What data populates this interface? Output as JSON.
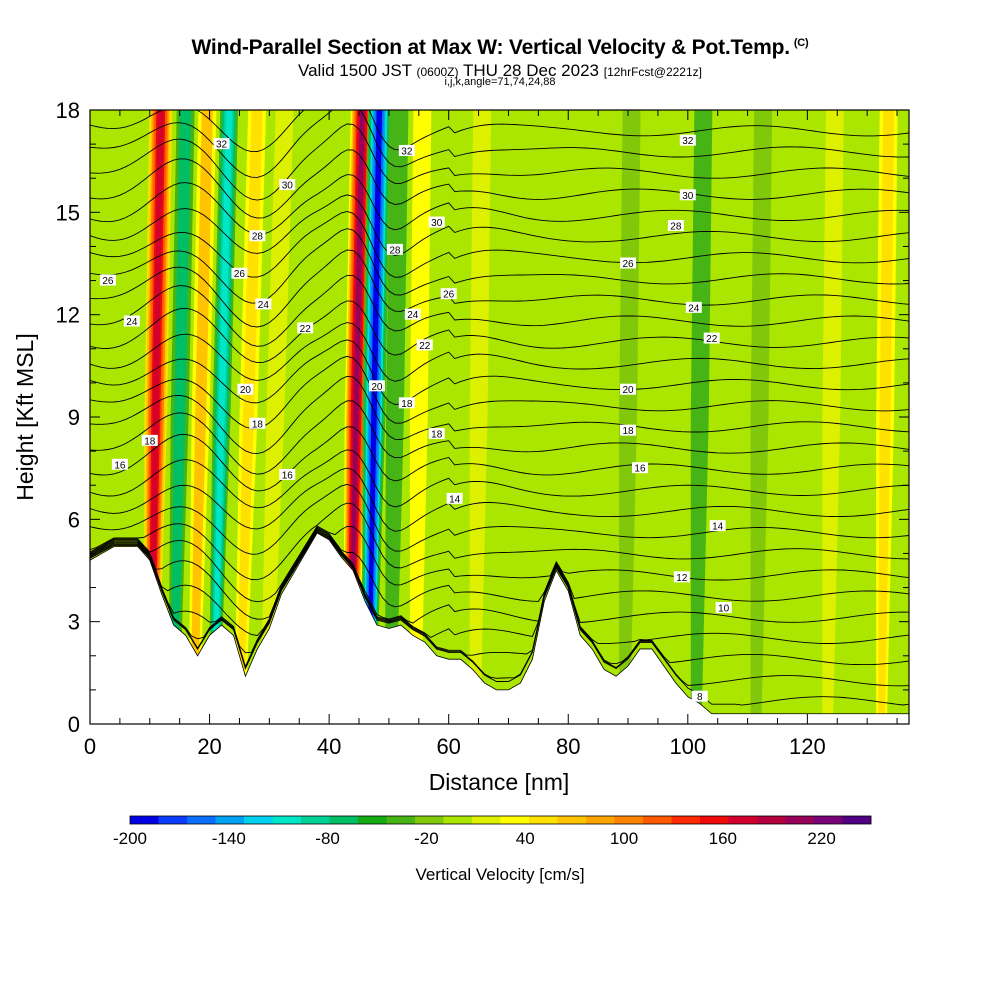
{
  "title": {
    "main": "Wind-Parallel Section at Max W: Vertical Velocity & Pot.Temp.",
    "copyright": "(C)",
    "valid_prefix": "Valid 1500 JST",
    "valid_utc": "(0600Z)",
    "valid_date": "THU 28 Dec 2023",
    "forecast": "[12hrFcst@2221z]",
    "indices": "i,j,k,angle=71,74,24,88"
  },
  "chart_data": {
    "type": "heatmap",
    "xlabel": "Distance [nm]",
    "ylabel": "Height [Kft MSL]",
    "xlim": [
      0,
      137
    ],
    "ylim": [
      0,
      18
    ],
    "x_ticks": [
      0,
      20,
      40,
      60,
      80,
      100,
      120
    ],
    "y_ticks": [
      0,
      3,
      6,
      9,
      12,
      15,
      18
    ],
    "colorbar": {
      "label": "Vertical Velocity [cm/s]",
      "min": -200,
      "max": 250,
      "tick_values": [
        -200,
        -140,
        -80,
        -20,
        40,
        100,
        160,
        220
      ],
      "colors": [
        "#0000e6",
        "#0a3cff",
        "#0a6eff",
        "#00a0f5",
        "#00d2f0",
        "#00e6c8",
        "#00d296",
        "#00be64",
        "#14aa14",
        "#46b414",
        "#82c80a",
        "#aae600",
        "#dcf000",
        "#ffff00",
        "#ffe100",
        "#ffc300",
        "#ffa500",
        "#ff8200",
        "#ff5a00",
        "#ff2800",
        "#f00a0a",
        "#d2002d",
        "#b4003c",
        "#96005a",
        "#780078",
        "#500082"
      ]
    },
    "terrain": [
      [
        0,
        4.8
      ],
      [
        2,
        5.0
      ],
      [
        4,
        5.2
      ],
      [
        6,
        5.2
      ],
      [
        8,
        5.2
      ],
      [
        10,
        4.8
      ],
      [
        12,
        3.8
      ],
      [
        14,
        2.9
      ],
      [
        16,
        2.6
      ],
      [
        18,
        2.0
      ],
      [
        20,
        2.6
      ],
      [
        22,
        2.9
      ],
      [
        24,
        2.6
      ],
      [
        26,
        1.4
      ],
      [
        28,
        2.2
      ],
      [
        30,
        2.8
      ],
      [
        32,
        3.8
      ],
      [
        34,
        4.4
      ],
      [
        36,
        5.0
      ],
      [
        38,
        5.6
      ],
      [
        40,
        5.4
      ],
      [
        42,
        4.9
      ],
      [
        44,
        4.5
      ],
      [
        46,
        3.6
      ],
      [
        48,
        2.9
      ],
      [
        50,
        2.8
      ],
      [
        52,
        2.9
      ],
      [
        54,
        2.6
      ],
      [
        56,
        2.4
      ],
      [
        58,
        2.0
      ],
      [
        60,
        1.9
      ],
      [
        62,
        1.9
      ],
      [
        64,
        1.6
      ],
      [
        66,
        1.2
      ],
      [
        68,
        1.0
      ],
      [
        70,
        1.0
      ],
      [
        72,
        1.2
      ],
      [
        74,
        1.9
      ],
      [
        76,
        3.6
      ],
      [
        78,
        4.5
      ],
      [
        80,
        3.9
      ],
      [
        82,
        2.6
      ],
      [
        84,
        2.2
      ],
      [
        86,
        1.6
      ],
      [
        88,
        1.4
      ],
      [
        90,
        1.7
      ],
      [
        92,
        2.2
      ],
      [
        94,
        2.2
      ],
      [
        96,
        1.7
      ],
      [
        98,
        1.2
      ],
      [
        100,
        0.8
      ],
      [
        102,
        0.6
      ],
      [
        104,
        0.3
      ],
      [
        106,
        0.3
      ],
      [
        137,
        0.3
      ]
    ],
    "w_features": [
      {
        "x": 11,
        "w": 180
      },
      {
        "x": 15,
        "w": -70
      },
      {
        "x": 18.5,
        "w": 60
      },
      {
        "x": 22,
        "w": -110
      },
      {
        "x": 26.5,
        "w": 50
      },
      {
        "x": 31,
        "w": 20
      },
      {
        "x": 44.5,
        "w": 200
      },
      {
        "x": 47.5,
        "w": -190
      },
      {
        "x": 51,
        "w": -40
      },
      {
        "x": 55,
        "w": 40
      },
      {
        "x": 65,
        "w": 10
      },
      {
        "x": 90,
        "w": -25
      },
      {
        "x": 102,
        "w": -30
      },
      {
        "x": 112,
        "w": -20
      },
      {
        "x": 124,
        "w": 20
      },
      {
        "x": 133,
        "w": 50
      }
    ],
    "isentropes": [
      {
        "theta": 8,
        "y": 0.8,
        "label_x": 102
      },
      {
        "theta": 10,
        "y": 3.4,
        "label_x": 106
      },
      {
        "theta": 12,
        "y": 4.3,
        "label_x": 99
      },
      {
        "theta": 14,
        "y": 5.8,
        "label_x": 105
      },
      {
        "theta": 14,
        "y": 6.6,
        "label_x": 61
      },
      {
        "theta": 16,
        "y": 7.3,
        "label_x": 33
      },
      {
        "theta": 16,
        "y": 7.5,
        "label_x": 92
      },
      {
        "theta": 16,
        "y": 7.6,
        "label_x": 5
      },
      {
        "theta": 18,
        "y": 8.3,
        "label_x": 10
      },
      {
        "theta": 18,
        "y": 8.5,
        "label_x": 58
      },
      {
        "theta": 18,
        "y": 8.6,
        "label_x": 90
      },
      {
        "theta": 18,
        "y": 9.4,
        "label_x": 53
      },
      {
        "theta": 18,
        "y": 8.8,
        "label_x": 28
      },
      {
        "theta": 20,
        "y": 9.8,
        "label_x": 26
      },
      {
        "theta": 20,
        "y": 9.9,
        "label_x": 48
      },
      {
        "theta": 20,
        "y": 9.8,
        "label_x": 90
      },
      {
        "theta": 22,
        "y": 11.1,
        "label_x": 56
      },
      {
        "theta": 22,
        "y": 11.6,
        "label_x": 36
      },
      {
        "theta": 22,
        "y": 11.3,
        "label_x": 104
      },
      {
        "theta": 24,
        "y": 11.8,
        "label_x": 7
      },
      {
        "theta": 24,
        "y": 12.3,
        "label_x": 29
      },
      {
        "theta": 24,
        "y": 12.0,
        "label_x": 54
      },
      {
        "theta": 24,
        "y": 12.2,
        "label_x": 101
      },
      {
        "theta": 26,
        "y": 13.0,
        "label_x": 3
      },
      {
        "theta": 26,
        "y": 13.2,
        "label_x": 25
      },
      {
        "theta": 26,
        "y": 12.6,
        "label_x": 60
      },
      {
        "theta": 26,
        "y": 13.5,
        "label_x": 90
      },
      {
        "theta": 28,
        "y": 14.3,
        "label_x": 28
      },
      {
        "theta": 28,
        "y": 13.9,
        "label_x": 51
      },
      {
        "theta": 28,
        "y": 14.6,
        "label_x": 98
      },
      {
        "theta": 30,
        "y": 15.8,
        "label_x": 33
      },
      {
        "theta": 30,
        "y": 14.7,
        "label_x": 58
      },
      {
        "theta": 30,
        "y": 15.5,
        "label_x": 100
      },
      {
        "theta": 32,
        "y": 17.0,
        "label_x": 22
      },
      {
        "theta": 32,
        "y": 16.8,
        "label_x": 53
      },
      {
        "theta": 32,
        "y": 17.1,
        "label_x": 100
      }
    ]
  }
}
